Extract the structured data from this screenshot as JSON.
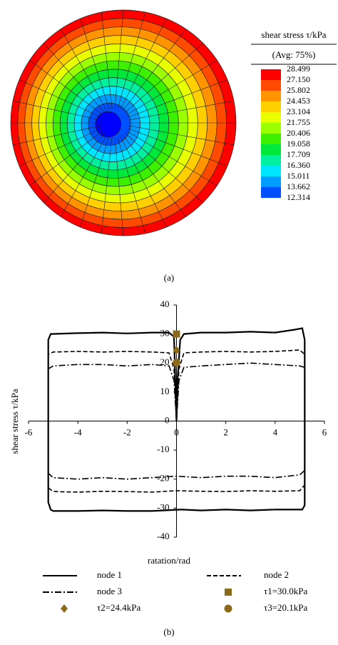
{
  "chart_data": [
    {
      "type": "contour",
      "title": "shear stress τ/kPa",
      "subtitle": "(Avg: 75%)",
      "levels": [
        28.499,
        {
          "value": 27.15,
          "label": "27.150"
        },
        25.802,
        24.453,
        23.104,
        21.755,
        20.406,
        19.058,
        17.709,
        {
          "value": 16.36,
          "label": "16.360"
        },
        15.011,
        13.662,
        12.314
      ],
      "colors": [
        "#ff0000",
        "#ff4a00",
        "#ff9400",
        "#ffcf00",
        "#e8ff00",
        "#9cff00",
        "#3cf000",
        "#00e83c",
        "#00f0a0",
        "#00e6ff",
        "#009cff",
        "#0050ff",
        "#0000ff"
      ],
      "caption": "(a)"
    },
    {
      "type": "line",
      "xlabel": "ratation/rad",
      "ylabel": "shear stress τ/kPa",
      "xlim": [
        -6,
        6
      ],
      "ylim": [
        -40,
        40
      ],
      "xticks": [
        -6,
        -4,
        -2,
        0,
        2,
        4,
        6
      ],
      "yticks": [
        -40,
        -30,
        -20,
        -10,
        0,
        10,
        20,
        30,
        40
      ],
      "series": [
        {
          "name": "node 1",
          "color": "#000000",
          "dash": "solid",
          "x": [
            0,
            0.05,
            0.15,
            0.3,
            1,
            2,
            3,
            4,
            4.8,
            5.1,
            5.2,
            5.2,
            5.1,
            4,
            3,
            2,
            1,
            0.2,
            -1,
            -2,
            -3,
            -4,
            -5,
            -5.1,
            -5.2,
            -5.2,
            -5.1,
            -4,
            -3,
            -2,
            -1,
            -0.3,
            -0.1,
            0
          ],
          "y": [
            0,
            15,
            28,
            30,
            30.5,
            30.5,
            30.8,
            30.5,
            31.5,
            32,
            28,
            -29,
            -30.5,
            -30.5,
            -30.8,
            -30.5,
            -30.8,
            -30.5,
            -31,
            -31,
            -30.8,
            -31,
            -31,
            -30.5,
            -28,
            28,
            30,
            30.3,
            30.5,
            30.2,
            30.5,
            30.5,
            29,
            0
          ]
        },
        {
          "name": "node 2",
          "color": "#000000",
          "dash": "dash",
          "x": [
            0,
            0.1,
            0.3,
            1,
            2,
            3,
            4,
            5,
            5.2,
            5.2,
            5,
            4,
            3,
            2,
            1,
            0,
            -1,
            -2,
            -3,
            -4,
            -5,
            -5.2,
            -5.2,
            -5,
            -4,
            -3,
            -2,
            -1,
            -0.3,
            -0.1,
            0
          ],
          "y": [
            0,
            18,
            23.5,
            23.8,
            24,
            23.8,
            24,
            24.5,
            23,
            -22,
            -24,
            -24.2,
            -24,
            -24.3,
            -24.2,
            -24,
            -24.5,
            -24.3,
            -24.2,
            -24.5,
            -24.3,
            -23,
            23,
            23.8,
            24,
            23.8,
            24,
            23.8,
            23.5,
            18,
            0
          ]
        },
        {
          "name": "node 3",
          "color": "#000000",
          "dash": "dashdot",
          "x": [
            0,
            0.1,
            0.3,
            1,
            2,
            3,
            4,
            5,
            5.2,
            5.2,
            5,
            4,
            3,
            2,
            1,
            0,
            -1,
            -2,
            -3,
            -4,
            -5,
            -5.2,
            -5.2,
            -5,
            -4,
            -3,
            -2,
            -1,
            -0.3,
            -0.1,
            0
          ],
          "y": [
            0,
            14,
            18.5,
            19,
            19.5,
            20,
            19.5,
            19,
            18.5,
            -17,
            -18.5,
            -19.5,
            -19,
            -19,
            -19.5,
            -19,
            -19.5,
            -20,
            -19.5,
            -20,
            -19.5,
            -18,
            18,
            19,
            19.5,
            19.5,
            19,
            19.5,
            19,
            14,
            0
          ]
        }
      ],
      "markers": [
        {
          "name": "τ1=30.0kPa",
          "x": 0,
          "y": 30,
          "shape": "square",
          "color": "#8c6a1c"
        },
        {
          "name": "τ2=24.4kPa",
          "x": 0,
          "y": 24.4,
          "shape": "diamond",
          "color": "#8c6a1c"
        },
        {
          "name": "τ3=20.1kPa",
          "x": 0,
          "y": 20.1,
          "shape": "circle",
          "color": "#8c6a1c"
        }
      ],
      "caption": "(b)"
    }
  ]
}
